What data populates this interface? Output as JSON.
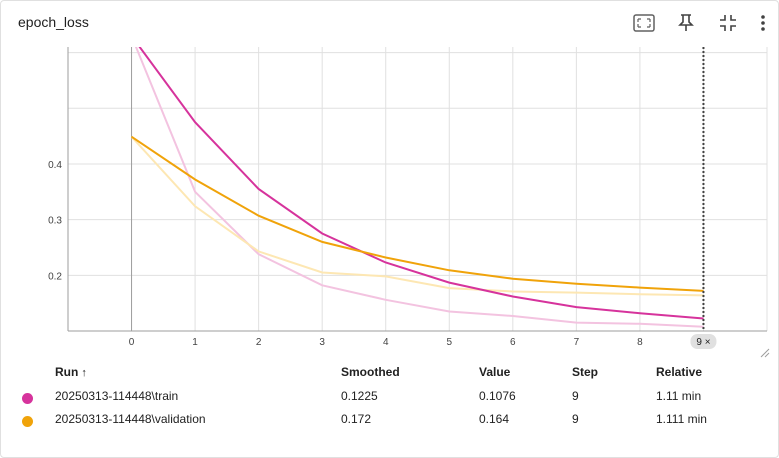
{
  "card": {
    "title": "epoch_loss"
  },
  "toolbar": {
    "buttons": [
      "fullscreen-icon",
      "pin-icon",
      "fit-domain-icon",
      "more-vert-icon"
    ]
  },
  "chart_data": {
    "type": "line",
    "title": "epoch_loss",
    "xlim": [
      -1,
      10
    ],
    "ylim": [
      0.1,
      0.61
    ],
    "xticks": [
      "0",
      "1",
      "2",
      "3",
      "4",
      "5",
      "6",
      "7",
      "8"
    ],
    "yticks": [
      "0.2",
      "0.3",
      "0.4"
    ],
    "grid": true,
    "series": [
      {
        "name": "20250313-114448\\train",
        "color": "#d6339c",
        "raw_color": "#f3c3e0",
        "x": [
          0,
          1,
          2,
          3,
          4,
          5,
          6,
          7,
          8,
          9
        ],
        "raw": [
          0.63,
          0.35,
          0.238,
          0.182,
          0.156,
          0.135,
          0.127,
          0.115,
          0.113,
          0.1076
        ],
        "smoothed": [
          0.63,
          0.475,
          0.355,
          0.275,
          0.223,
          0.187,
          0.162,
          0.143,
          0.132,
          0.1225
        ]
      },
      {
        "name": "20250313-114448\\validation",
        "color": "#f0a30a",
        "raw_color": "#fde7b3",
        "x": [
          0,
          1,
          2,
          3,
          4,
          5,
          6,
          7,
          8,
          9
        ],
        "raw": [
          0.449,
          0.324,
          0.243,
          0.205,
          0.198,
          0.177,
          0.171,
          0.169,
          0.166,
          0.164
        ],
        "smoothed": [
          0.449,
          0.372,
          0.307,
          0.26,
          0.232,
          0.209,
          0.194,
          0.185,
          0.178,
          0.172
        ]
      }
    ],
    "hover_step": 9,
    "hover_badge": "9 ×"
  },
  "table": {
    "headers": {
      "run": "Run",
      "sort": "↑",
      "smoothed": "Smoothed",
      "value": "Value",
      "step": "Step",
      "relative": "Relative"
    },
    "rows": [
      {
        "color": "#d6339c",
        "run": "20250313-114448\\train",
        "smoothed": "0.1225",
        "value": "0.1076",
        "step": "9",
        "relative": "1.11 min"
      },
      {
        "color": "#f0a30a",
        "run": "20250313-114448\\validation",
        "smoothed": "0.172",
        "value": "0.164",
        "step": "9",
        "relative": "1.111 min"
      }
    ]
  }
}
